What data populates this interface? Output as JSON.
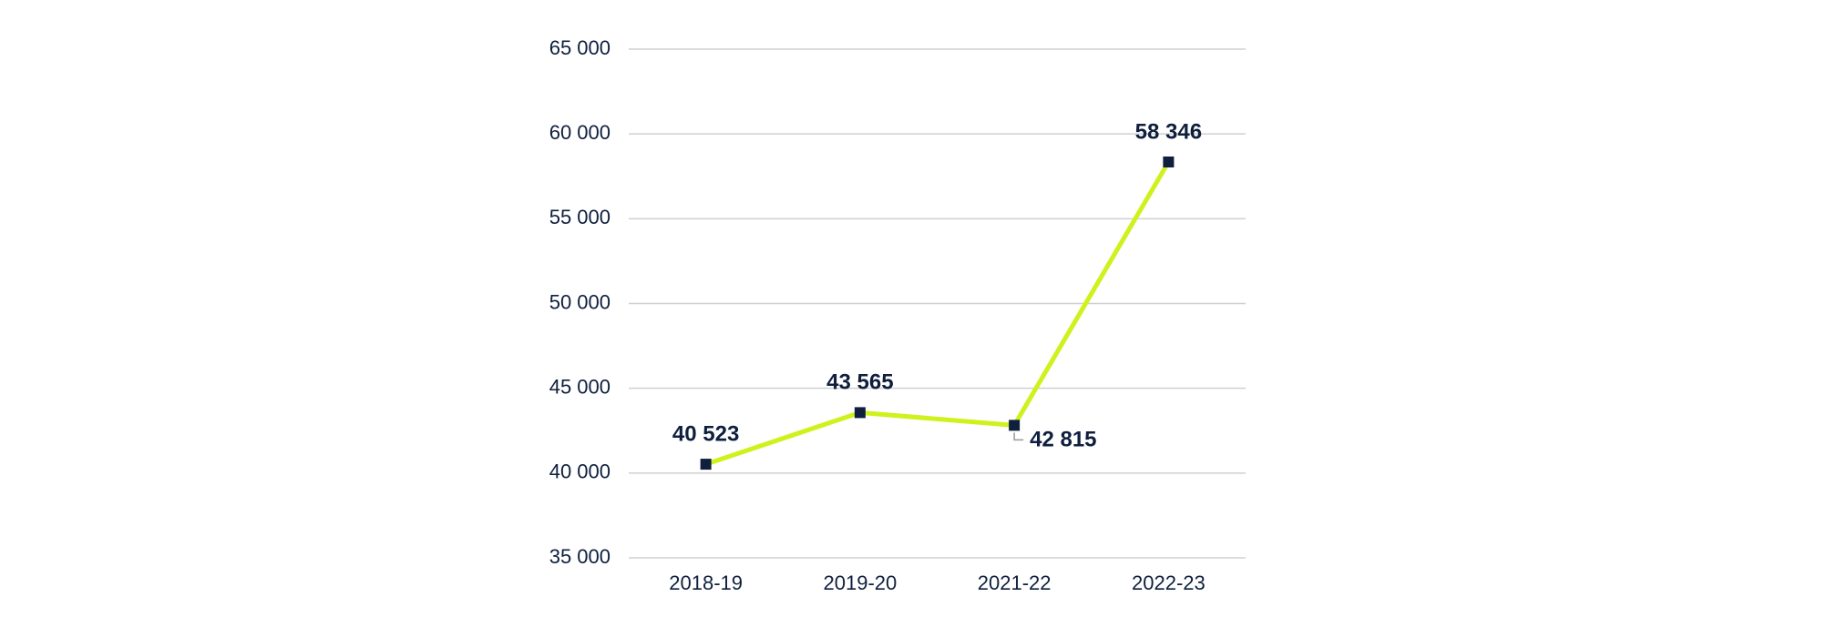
{
  "chart_data": {
    "type": "line",
    "categories": [
      "2018-19",
      "2019-20",
      "2021-22",
      "2022-23"
    ],
    "series": [
      {
        "color": "#cdf21c",
        "marker_color": "#0f1f3d",
        "values": [
          40523,
          43565,
          42815,
          58346
        ],
        "value_labels": [
          "40 523",
          "43 565",
          "42 815",
          "58 346"
        ]
      }
    ],
    "ylim": [
      35000,
      65000
    ],
    "yticks": [
      {
        "value": 35000,
        "label": "35 000"
      },
      {
        "value": 40000,
        "label": "40 000"
      },
      {
        "value": 45000,
        "label": "45 000"
      },
      {
        "value": 50000,
        "label": "50 000"
      },
      {
        "value": 55000,
        "label": "55 000"
      },
      {
        "value": 60000,
        "label": "60 000"
      },
      {
        "value": 65000,
        "label": "65 000"
      }
    ],
    "grid": true
  }
}
